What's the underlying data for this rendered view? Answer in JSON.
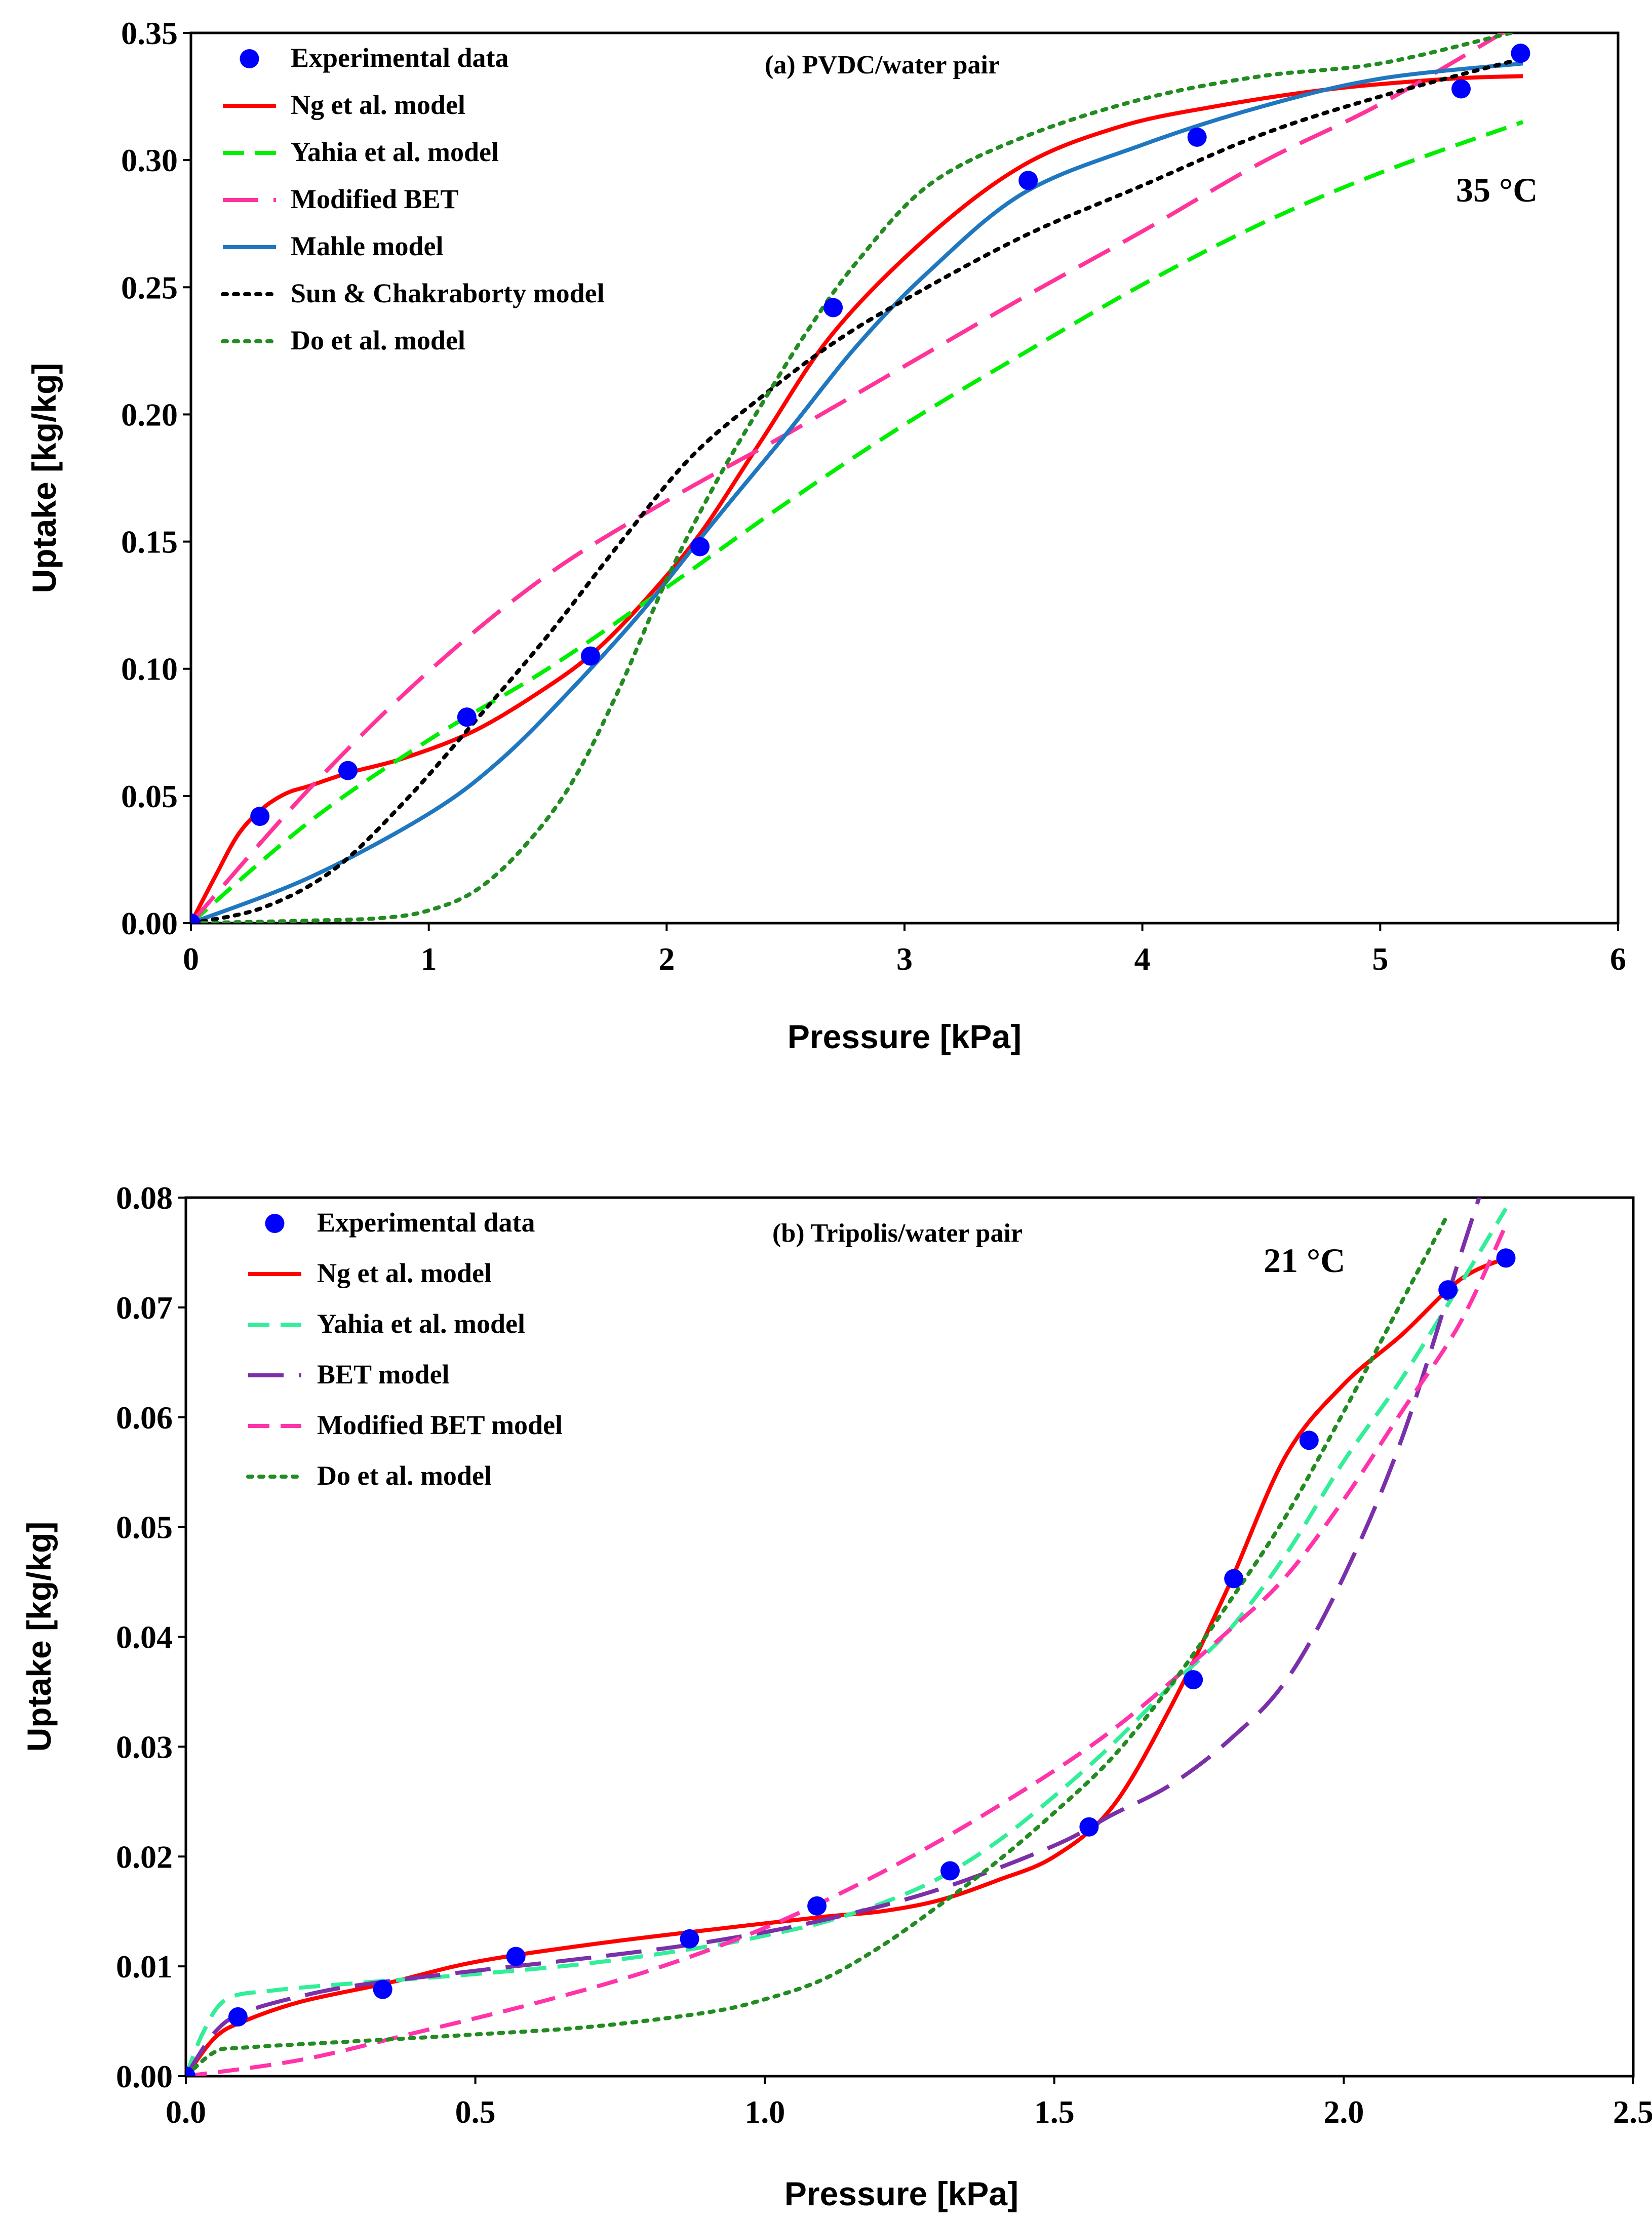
{
  "chart_data": [
    {
      "type": "line",
      "annotation": "(a) PVDC/water pair",
      "temperature_label": "35 °C",
      "xlabel": "Pressure [kPa]",
      "ylabel": "Uptake [kg/kg]",
      "xlim": [
        0,
        6
      ],
      "ylim": [
        0,
        0.35
      ],
      "x_ticks": [
        0,
        1,
        2,
        3,
        4,
        5,
        6
      ],
      "x_tick_labels": [
        "0",
        "1",
        "2",
        "3",
        "4",
        "5",
        "6"
      ],
      "y_ticks": [
        0,
        0.05,
        0.1,
        0.15,
        0.2,
        0.25,
        0.3,
        0.35
      ],
      "y_tick_labels": [
        "0.00",
        "0.05",
        "0.10",
        "0.15",
        "0.20",
        "0.25",
        "0.30",
        "0.35"
      ],
      "grid": false,
      "legend_position": "top-left",
      "series": [
        {
          "name": "Experimental data",
          "kind": "marker",
          "color": "#0000ff",
          "x": [
            0,
            0.29,
            0.66,
            1.16,
            1.68,
            2.14,
            2.7,
            3.52,
            4.23,
            5.34,
            5.59
          ],
          "y": [
            0,
            0.042,
            0.06,
            0.081,
            0.105,
            0.148,
            0.242,
            0.292,
            0.309,
            0.328,
            0.342
          ]
        },
        {
          "name": "Ng et al. model",
          "kind": "line",
          "dash": "solid",
          "color": "#ff0000",
          "x": [
            0,
            0.1,
            0.2,
            0.3,
            0.4,
            0.5,
            0.66,
            0.9,
            1.2,
            1.5,
            1.7,
            1.9,
            2.14,
            2.4,
            2.7,
            3.1,
            3.5,
            3.9,
            4.3,
            4.8,
            5.3,
            5.6
          ],
          "y": [
            0,
            0.018,
            0.035,
            0.045,
            0.051,
            0.054,
            0.059,
            0.065,
            0.076,
            0.093,
            0.107,
            0.126,
            0.153,
            0.19,
            0.232,
            0.27,
            0.298,
            0.313,
            0.321,
            0.328,
            0.332,
            0.333
          ]
        },
        {
          "name": "Yahia et al. model",
          "kind": "line",
          "dash": "dash",
          "color": "#00ee00",
          "x": [
            0,
            0.5,
            1,
            1.5,
            2,
            2.5,
            3,
            3.5,
            4,
            4.5,
            5,
            5.6
          ],
          "y": [
            0,
            0.04,
            0.072,
            0.1,
            0.132,
            0.165,
            0.196,
            0.224,
            0.251,
            0.275,
            0.295,
            0.315
          ]
        },
        {
          "name": "Modified BET",
          "kind": "line",
          "dash": "longdash",
          "color": "#ff3399",
          "x": [
            0,
            0.5,
            1,
            1.5,
            2,
            2.5,
            3,
            3.5,
            4,
            4.5,
            5,
            5.55
          ],
          "y": [
            0,
            0.053,
            0.099,
            0.137,
            0.166,
            0.192,
            0.219,
            0.246,
            0.272,
            0.299,
            0.322,
            0.352
          ]
        },
        {
          "name": "Mahle model",
          "kind": "line",
          "dash": "solid",
          "color": "#1f77c0",
          "x": [
            0,
            0.5,
            1,
            1.3,
            1.6,
            1.9,
            2.2,
            2.5,
            2.8,
            3.1,
            3.5,
            4,
            4.5,
            5,
            5.6
          ],
          "y": [
            0,
            0.018,
            0.043,
            0.064,
            0.092,
            0.123,
            0.158,
            0.192,
            0.227,
            0.256,
            0.287,
            0.306,
            0.321,
            0.332,
            0.338
          ]
        },
        {
          "name": "Sun & Chakraborty model",
          "kind": "line",
          "dash": "dot",
          "color": "#000000",
          "x": [
            0,
            0.3,
            0.6,
            0.9,
            1.2,
            1.5,
            1.8,
            2.1,
            2.4,
            2.7,
            3,
            3.5,
            4,
            4.5,
            5,
            5.6
          ],
          "y": [
            0,
            0.006,
            0.021,
            0.048,
            0.08,
            0.113,
            0.149,
            0.183,
            0.207,
            0.228,
            0.245,
            0.27,
            0.29,
            0.31,
            0.325,
            0.34
          ]
        },
        {
          "name": "Do et al. model",
          "kind": "line",
          "dash": "dot",
          "color": "#228b22",
          "x": [
            0,
            0.5,
            0.8,
            1,
            1.2,
            1.4,
            1.6,
            1.8,
            2,
            2.2,
            2.4,
            2.6,
            2.8,
            3.1,
            3.5,
            4,
            4.5,
            5,
            5.55
          ],
          "y": [
            0,
            0.001,
            0.002,
            0.005,
            0.013,
            0.03,
            0.055,
            0.092,
            0.135,
            0.172,
            0.204,
            0.234,
            0.26,
            0.29,
            0.309,
            0.324,
            0.333,
            0.338,
            0.35
          ]
        }
      ]
    },
    {
      "type": "line",
      "annotation": "(b) Tripolis/water pair",
      "temperature_label": "21 °C",
      "xlabel": "Pressure [kPa]",
      "ylabel": "Uptake [kg/kg]",
      "xlim": [
        0,
        2.5
      ],
      "ylim": [
        0,
        0.08
      ],
      "x_ticks": [
        0,
        0.5,
        1,
        1.5,
        2,
        2.5
      ],
      "x_tick_labels": [
        "0.0",
        "0.5",
        "1.0",
        "1.5",
        "2.0",
        "2.5"
      ],
      "y_ticks": [
        0,
        0.01,
        0.02,
        0.03,
        0.04,
        0.05,
        0.06,
        0.07,
        0.08
      ],
      "y_tick_labels": [
        "0.00",
        "0.01",
        "0.02",
        "0.03",
        "0.04",
        "0.05",
        "0.06",
        "0.07",
        "0.08"
      ],
      "grid": false,
      "legend_position": "top-left",
      "series": [
        {
          "name": "Experimental data",
          "kind": "marker",
          "color": "#0000ff",
          "x": [
            0,
            0.09,
            0.34,
            0.57,
            0.87,
            1.09,
            1.32,
            1.56,
            1.74,
            1.81,
            1.94,
            2.18,
            2.28
          ],
          "y": [
            0,
            0.0054,
            0.0079,
            0.0109,
            0.0125,
            0.0155,
            0.0187,
            0.0227,
            0.0361,
            0.0453,
            0.0579,
            0.0716,
            0.0745
          ]
        },
        {
          "name": "Ng et al. model",
          "kind": "line",
          "dash": "solid",
          "color": "#ff0000",
          "x": [
            0,
            0.05,
            0.1,
            0.2,
            0.35,
            0.5,
            0.7,
            0.9,
            1.1,
            1.2,
            1.3,
            1.4,
            1.5,
            1.6,
            1.7,
            1.8,
            1.9,
            2,
            2.1,
            2.2,
            2.28
          ],
          "y": [
            0,
            0.0035,
            0.005,
            0.0068,
            0.0085,
            0.0104,
            0.012,
            0.0133,
            0.0145,
            0.015,
            0.016,
            0.0178,
            0.02,
            0.0245,
            0.0335,
            0.0445,
            0.0565,
            0.063,
            0.0675,
            0.0725,
            0.0745
          ]
        },
        {
          "name": "Yahia et al. model",
          "kind": "line",
          "dash": "dash",
          "color": "#33ee99",
          "x": [
            0,
            0.03,
            0.07,
            0.15,
            0.3,
            0.5,
            0.7,
            0.9,
            1,
            1.1,
            1.2,
            1.3,
            1.4,
            1.5,
            1.6,
            1.7,
            1.8,
            1.9,
            2,
            2.1,
            2.2,
            2.28
          ],
          "y": [
            0,
            0.004,
            0.007,
            0.0078,
            0.0085,
            0.0093,
            0.0103,
            0.0118,
            0.0128,
            0.014,
            0.0157,
            0.018,
            0.0213,
            0.0255,
            0.0302,
            0.0355,
            0.0405,
            0.0475,
            0.056,
            0.0635,
            0.072,
            0.079
          ]
        },
        {
          "name": "BET model",
          "kind": "line",
          "dash": "longdash",
          "color": "#7b2fa8",
          "x": [
            0,
            0.05,
            0.1,
            0.2,
            0.3,
            0.5,
            0.7,
            0.9,
            1.1,
            1.3,
            1.5,
            1.6,
            1.7,
            1.8,
            1.9,
            2,
            2.1,
            2.2,
            2.24
          ],
          "y": [
            0,
            0.004,
            0.0058,
            0.0073,
            0.0083,
            0.0096,
            0.0108,
            0.0122,
            0.0142,
            0.017,
            0.021,
            0.0238,
            0.0265,
            0.0305,
            0.036,
            0.0455,
            0.058,
            0.0745,
            0.081
          ]
        },
        {
          "name": "Modified BET model",
          "kind": "line",
          "dash": "dash",
          "color": "#ff33aa",
          "x": [
            0,
            0.2,
            0.4,
            0.6,
            0.8,
            1,
            1.2,
            1.4,
            1.6,
            1.8,
            1.9,
            2,
            2.1,
            2.2,
            2.28
          ],
          "y": [
            0,
            0.0015,
            0.004,
            0.0066,
            0.0096,
            0.0135,
            0.0185,
            0.0245,
            0.0315,
            0.0405,
            0.0455,
            0.0525,
            0.0605,
            0.0685,
            0.0775
          ]
        },
        {
          "name": "Do et al. model",
          "kind": "line",
          "dash": "dot",
          "color": "#228b22",
          "x": [
            0,
            0.05,
            0.1,
            0.3,
            0.5,
            0.7,
            0.9,
            1,
            1.1,
            1.2,
            1.3,
            1.4,
            1.5,
            1.6,
            1.7,
            1.8,
            1.9,
            2,
            2.1,
            2.18
          ],
          "y": [
            0,
            0.0022,
            0.0026,
            0.0032,
            0.0038,
            0.0045,
            0.0058,
            0.007,
            0.0088,
            0.0118,
            0.0155,
            0.0195,
            0.024,
            0.029,
            0.0355,
            0.043,
            0.051,
            0.0605,
            0.0705,
            0.0785
          ]
        }
      ]
    }
  ]
}
